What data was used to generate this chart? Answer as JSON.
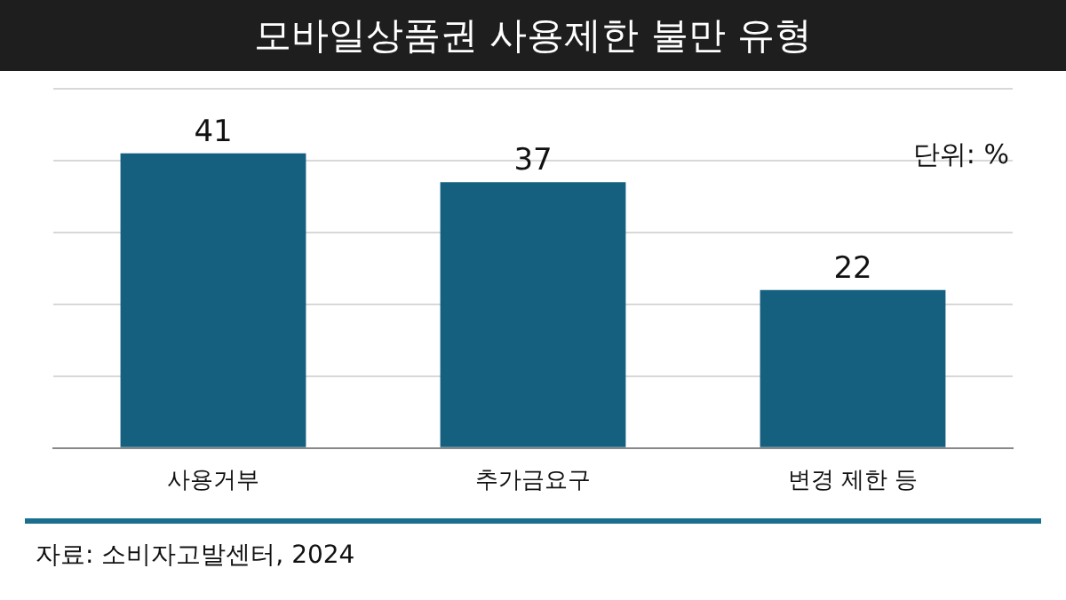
{
  "chart_data": {
    "type": "bar",
    "title": "모바일상품권 사용제한 불만 유형",
    "categories": [
      "사용거부",
      "추가금요구",
      "변경 제한 등"
    ],
    "values": [
      41,
      37,
      22
    ],
    "color": "#155f7f",
    "ylim": [
      0,
      50
    ],
    "yticks": [
      {
        "value": 0,
        "label": null
      },
      {
        "value": 10,
        "label": null
      },
      {
        "value": 20,
        "label": null
      },
      {
        "value": 30,
        "label": null
      },
      {
        "value": 40,
        "label": null
      },
      {
        "value": 50,
        "label": null
      }
    ],
    "tick_labels": "x",
    "grid": "y",
    "data_labels": true,
    "annotations": [
      "단위: %",
      "자료: 소비자고발센터, 2024"
    ]
  }
}
